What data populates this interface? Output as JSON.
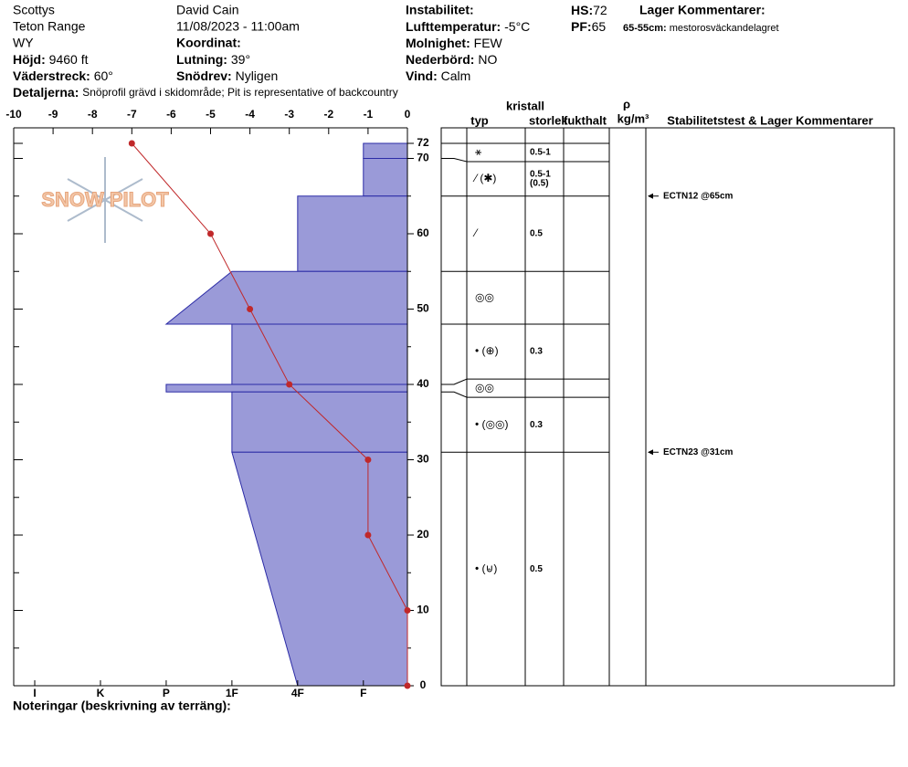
{
  "header": {
    "location": [
      "Scottys",
      "Teton Range",
      "WY"
    ],
    "elevation": {
      "label": "Höjd:",
      "value": "9460 ft"
    },
    "aspect": {
      "label": "Väderstreck:",
      "value": "60°"
    },
    "details": {
      "label": "Detaljerna:",
      "value": "Snöprofil grävd i skidområde;  Pit is representative of backcountry"
    },
    "observer": "David Cain",
    "datetime": "11/08/2023 - 11:00am",
    "coordinate": {
      "label": "Koordinat:"
    },
    "slope": {
      "label": "Lutning:",
      "value": "39°"
    },
    "wind_loading": {
      "label": "Snödrev:",
      "value": "Nyligen"
    },
    "instability": {
      "label": "Instabilitet:"
    },
    "air_temp": {
      "label": "Lufttemperatur:",
      "value": "-5°C"
    },
    "sky": {
      "label": "Molnighet:",
      "value": "FEW"
    },
    "precip": {
      "label": "Nederbörd:",
      "value": "NO"
    },
    "wind": {
      "label": "Vind:",
      "value": "Calm"
    },
    "hs": {
      "label": "HS:",
      "value": 72
    },
    "pf": {
      "label": "PF:",
      "value": 65
    },
    "layer_comments": {
      "label": "Lager Kommentarer:",
      "range": "65-55cm:",
      "text": "mestorosväckandelagret"
    }
  },
  "logo": "SNOW PILOT",
  "notes_label": "Noteringar (beskrivning av terräng):",
  "chart_data": {
    "type": "snow_profile",
    "ylim": [
      0,
      72
    ],
    "yticks": [
      0,
      10,
      20,
      30,
      40,
      50,
      60,
      70,
      72
    ],
    "yminor": [
      5,
      15,
      25,
      35,
      45,
      55,
      65
    ],
    "temperature": {
      "xlim": [
        -10,
        0
      ],
      "xticks": [
        -10,
        -9,
        -8,
        -7,
        -6,
        -5,
        -4,
        -3,
        -2,
        -1,
        0
      ],
      "depth": [
        72,
        60,
        50,
        40,
        30,
        20,
        10,
        0
      ],
      "values": [
        -7,
        -5,
        -4,
        -3,
        -1,
        -1,
        0,
        0
      ],
      "color": "#c0282a"
    },
    "hardness": {
      "lim": [
        6.32,
        0.33
      ],
      "ticks": [
        {
          "value": 6,
          "label": "I"
        },
        {
          "value": 5,
          "label": "K"
        },
        {
          "value": 4,
          "label": "P"
        },
        {
          "value": 3,
          "label": "1F"
        },
        {
          "value": 2,
          "label": "4F"
        },
        {
          "value": 1,
          "label": "F"
        }
      ]
    },
    "color": "#9a9ad8",
    "layers": [
      {
        "top": 72,
        "bottom": 70,
        "hardness_top": 1,
        "hardness_bottom": 1,
        "crystal": "⚹",
        "size": "0.5-1"
      },
      {
        "top": 70,
        "bottom": 65,
        "hardness_top": 1,
        "hardness_bottom": 1,
        "crystal": "⁄ (✱)",
        "size": "0.5-1",
        "size_alt": "(0.5)"
      },
      {
        "top": 65,
        "bottom": 55,
        "hardness_top": 2,
        "hardness_bottom": 2,
        "crystal": "⁄",
        "size": "0.5"
      },
      {
        "top": 55,
        "bottom": 48,
        "hardness_top": 3,
        "hardness_bottom": 4,
        "crystal": "◎◎"
      },
      {
        "top": 48,
        "bottom": 40,
        "hardness_top": 3,
        "hardness_bottom": 3,
        "crystal": "• (⊕)",
        "size": "0.3"
      },
      {
        "top": 40,
        "bottom": 39,
        "hardness_top": 4,
        "hardness_bottom": 4,
        "crystal": "◎◎"
      },
      {
        "top": 39,
        "bottom": 31,
        "hardness_top": 3,
        "hardness_bottom": 3,
        "crystal": "• (◎◎)",
        "size": "0.3"
      },
      {
        "top": 31,
        "bottom": 0,
        "hardness_top": 3,
        "hardness_bottom": 2,
        "crystal": "• (⊌)",
        "size": "0.5"
      }
    ],
    "columns": {
      "crystal": "kristall",
      "type": "typ",
      "size": "storlek",
      "moisture": "fukthalt",
      "rho": "ρ",
      "density": "kg/m³",
      "comments": "Stabilitetstest & Lager Kommentarer"
    },
    "tests": [
      {
        "height": 65,
        "label": "ECTN12 @65cm"
      },
      {
        "height": 31,
        "label": "ECTN23 @31cm"
      }
    ]
  }
}
